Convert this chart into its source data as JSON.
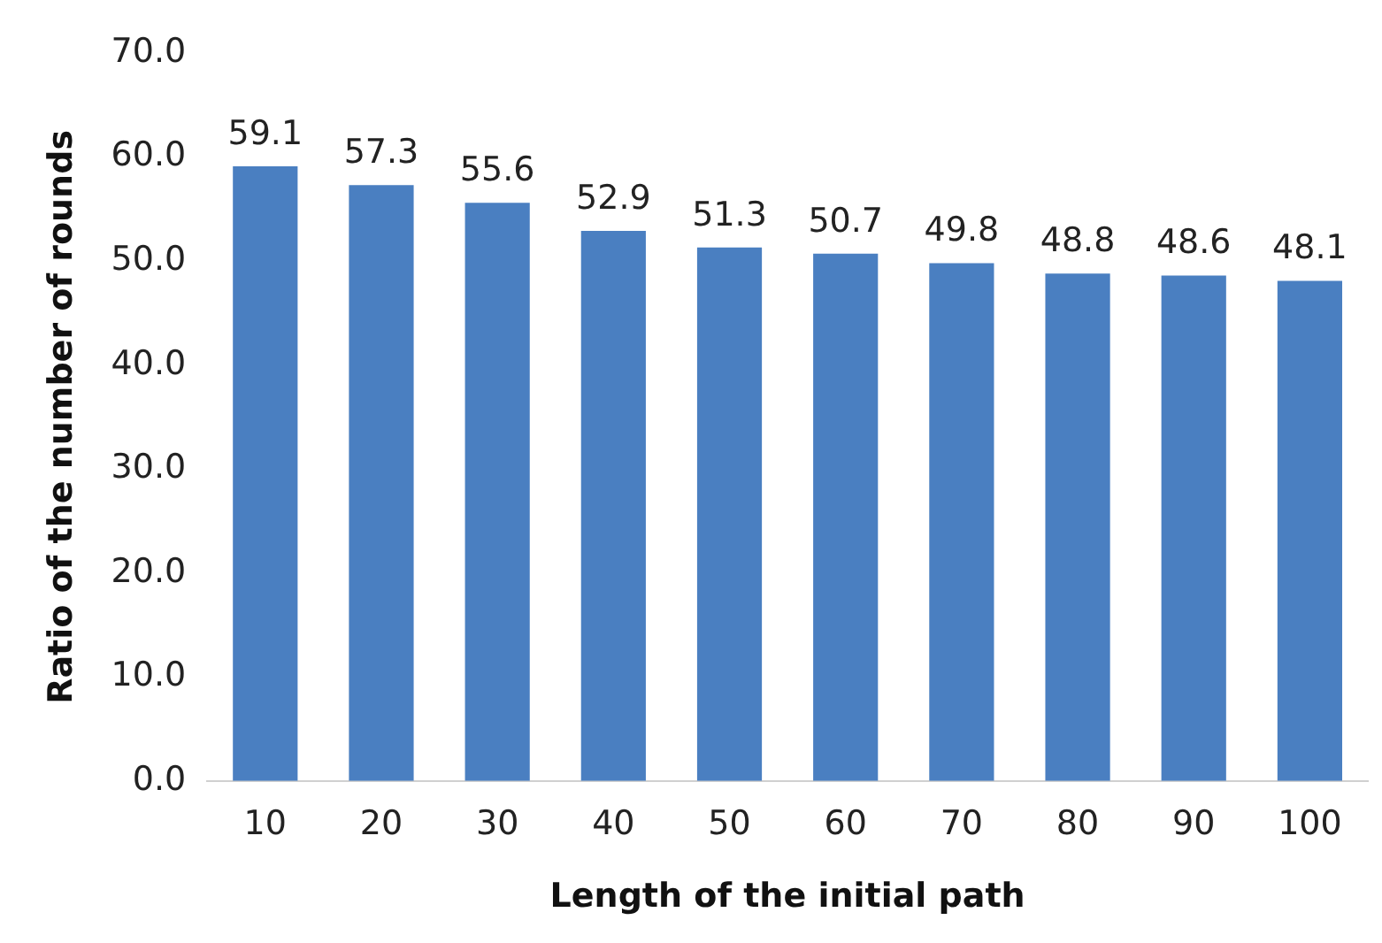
{
  "chart_data": {
    "type": "bar",
    "xlabel": "Length of the initial path",
    "ylabel": "Ratio of the number of rounds",
    "categories": [
      "10",
      "20",
      "30",
      "40",
      "50",
      "60",
      "70",
      "80",
      "90",
      "100"
    ],
    "values": [
      59.1,
      57.3,
      55.6,
      52.9,
      51.3,
      50.7,
      49.8,
      48.8,
      48.6,
      48.1
    ],
    "color": "#4a7fc1",
    "ylim": [
      0,
      70
    ],
    "yticks": [
      {
        "value": 0,
        "label": "0.0"
      },
      {
        "value": 10,
        "label": "10.0"
      },
      {
        "value": 20,
        "label": "20.0"
      },
      {
        "value": 30,
        "label": "30.0"
      },
      {
        "value": 40,
        "label": "40.0"
      },
      {
        "value": 50,
        "label": "50.0"
      },
      {
        "value": 60,
        "label": "60.0"
      },
      {
        "value": 70,
        "label": "70.0"
      }
    ],
    "data_labels": true,
    "grid": false,
    "legend": false
  }
}
